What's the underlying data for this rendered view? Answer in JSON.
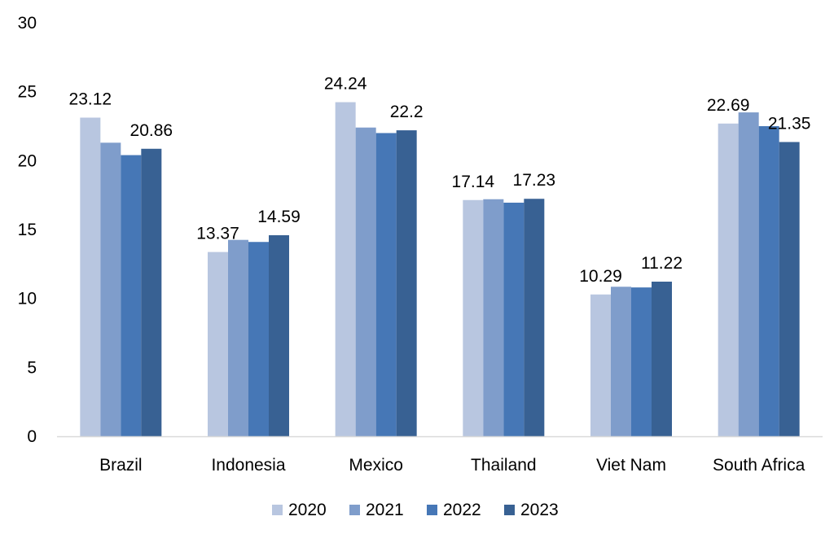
{
  "chart_data": {
    "type": "bar",
    "categories": [
      "Brazil",
      "Indonesia",
      "Mexico",
      "Thailand",
      "Viet Nam",
      "South Africa"
    ],
    "series": [
      {
        "name": "2020",
        "color": "#b8c6e0",
        "values": [
          23.12,
          13.37,
          24.24,
          17.14,
          10.29,
          22.69
        ]
      },
      {
        "name": "2021",
        "color": "#7f9dcb",
        "values": [
          21.3,
          14.25,
          22.4,
          17.2,
          10.85,
          23.5
        ]
      },
      {
        "name": "2022",
        "color": "#4677b6",
        "values": [
          20.4,
          14.1,
          22.0,
          16.95,
          10.8,
          22.5
        ]
      },
      {
        "name": "2023",
        "color": "#386193",
        "values": [
          20.86,
          14.59,
          22.2,
          17.23,
          11.22,
          21.35
        ]
      }
    ],
    "data_labels": [
      [
        "23.12",
        null,
        "20.86"
      ],
      [
        "13.37",
        null,
        "14.59"
      ],
      [
        "24.24",
        null,
        "22.2"
      ],
      [
        "17.14",
        null,
        "17.23"
      ],
      [
        "10.29",
        null,
        "11.22"
      ],
      [
        "22.69",
        null,
        "21.35"
      ]
    ],
    "y_ticks": [
      0,
      5,
      10,
      15,
      20,
      25,
      30
    ],
    "ylim": [
      0,
      30
    ],
    "title": "",
    "xlabel": "",
    "ylabel": "",
    "grid": false,
    "legend_position": "bottom"
  }
}
